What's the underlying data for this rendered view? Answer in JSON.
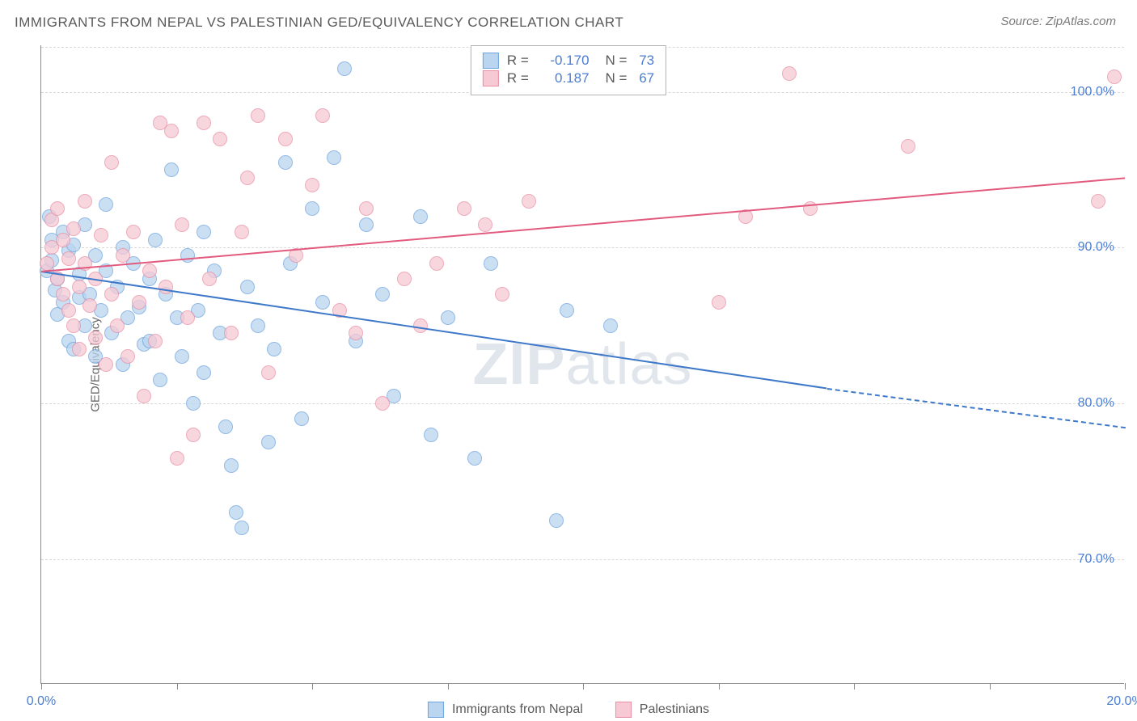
{
  "title": "IMMIGRANTS FROM NEPAL VS PALESTINIAN GED/EQUIVALENCY CORRELATION CHART",
  "source": "Source: ZipAtlas.com",
  "ylabel": "GED/Equivalency",
  "watermark_bold": "ZIP",
  "watermark_rest": "atlas",
  "chart": {
    "type": "scatter-with-trend",
    "xlim": [
      0,
      20
    ],
    "ylim": [
      62,
      103
    ],
    "xticks": [
      0,
      2.5,
      5,
      7.5,
      10,
      12.5,
      15,
      17.5,
      20
    ],
    "xtick_labels_visible": {
      "0": "0.0%",
      "20": "20.0%"
    },
    "yticks": [
      70,
      80,
      90,
      100
    ],
    "ytick_labels": {
      "70": "70.0%",
      "80": "80.0%",
      "90": "90.0%",
      "100": "100.0%"
    },
    "grid_color": "#d8d8d8",
    "axis_color": "#888888",
    "background": "#ffffff",
    "label_color": "#4b7dd1",
    "text_color": "#5a5a5a",
    "title_fontsize": 17,
    "label_fontsize": 15,
    "tick_fontsize": 16,
    "marker_size": 18,
    "series": [
      {
        "name": "Immigrants from Nepal",
        "color_fill": "#bad5f0",
        "color_stroke": "#6ea3dd",
        "trend_color": "#3e78c9",
        "R": "-0.170",
        "N": "73",
        "trend": {
          "x1": 0,
          "y1": 88.5,
          "x2_solid": 14.5,
          "y2_solid": 81.0,
          "x2_dash": 20,
          "y2_dash": 78.5
        },
        "points": [
          [
            0.1,
            88.5
          ],
          [
            0.2,
            89.2
          ],
          [
            0.2,
            90.5
          ],
          [
            0.15,
            92.0
          ],
          [
            0.25,
            87.3
          ],
          [
            0.3,
            85.7
          ],
          [
            0.3,
            88.0
          ],
          [
            0.4,
            86.5
          ],
          [
            0.4,
            91.0
          ],
          [
            0.5,
            89.8
          ],
          [
            0.5,
            84.0
          ],
          [
            0.6,
            83.5
          ],
          [
            0.6,
            90.2
          ],
          [
            0.7,
            86.8
          ],
          [
            0.7,
            88.3
          ],
          [
            0.8,
            85.0
          ],
          [
            0.8,
            91.5
          ],
          [
            0.9,
            87.0
          ],
          [
            1.0,
            89.5
          ],
          [
            1.0,
            83.0
          ],
          [
            1.1,
            86.0
          ],
          [
            1.2,
            88.5
          ],
          [
            1.2,
            92.8
          ],
          [
            1.3,
            84.5
          ],
          [
            1.4,
            87.5
          ],
          [
            1.5,
            90.0
          ],
          [
            1.5,
            82.5
          ],
          [
            1.6,
            85.5
          ],
          [
            1.7,
            89.0
          ],
          [
            1.8,
            86.2
          ],
          [
            1.9,
            83.8
          ],
          [
            2.0,
            88.0
          ],
          [
            2.0,
            84.0
          ],
          [
            2.1,
            90.5
          ],
          [
            2.2,
            81.5
          ],
          [
            2.3,
            87.0
          ],
          [
            2.4,
            95.0
          ],
          [
            2.5,
            85.5
          ],
          [
            2.6,
            83.0
          ],
          [
            2.7,
            89.5
          ],
          [
            2.8,
            80.0
          ],
          [
            2.9,
            86.0
          ],
          [
            3.0,
            91.0
          ],
          [
            3.0,
            82.0
          ],
          [
            3.2,
            88.5
          ],
          [
            3.3,
            84.5
          ],
          [
            3.4,
            78.5
          ],
          [
            3.5,
            76.0
          ],
          [
            3.6,
            73.0
          ],
          [
            3.7,
            72.0
          ],
          [
            3.8,
            87.5
          ],
          [
            4.0,
            85.0
          ],
          [
            4.2,
            77.5
          ],
          [
            4.3,
            83.5
          ],
          [
            4.5,
            95.5
          ],
          [
            4.6,
            89.0
          ],
          [
            4.8,
            79.0
          ],
          [
            5.0,
            92.5
          ],
          [
            5.2,
            86.5
          ],
          [
            5.4,
            95.8
          ],
          [
            5.6,
            101.5
          ],
          [
            5.8,
            84.0
          ],
          [
            6.0,
            91.5
          ],
          [
            6.3,
            87.0
          ],
          [
            6.5,
            80.5
          ],
          [
            7.0,
            92.0
          ],
          [
            7.2,
            78.0
          ],
          [
            7.5,
            85.5
          ],
          [
            8.0,
            76.5
          ],
          [
            8.3,
            89.0
          ],
          [
            9.5,
            72.5
          ],
          [
            9.7,
            86.0
          ],
          [
            10.5,
            85.0
          ]
        ]
      },
      {
        "name": "Palestinians",
        "color_fill": "#f6c9d4",
        "color_stroke": "#e88fa5",
        "trend_color": "#e35a7f",
        "R": "0.187",
        "N": "67",
        "trend": {
          "x1": 0,
          "y1": 88.5,
          "x2_solid": 20,
          "y2_solid": 94.5,
          "x2_dash": 20,
          "y2_dash": 94.5
        },
        "points": [
          [
            0.1,
            89.0
          ],
          [
            0.2,
            90.0
          ],
          [
            0.2,
            91.8
          ],
          [
            0.3,
            88.0
          ],
          [
            0.3,
            92.5
          ],
          [
            0.4,
            87.0
          ],
          [
            0.4,
            90.5
          ],
          [
            0.5,
            86.0
          ],
          [
            0.5,
            89.3
          ],
          [
            0.6,
            85.0
          ],
          [
            0.6,
            91.2
          ],
          [
            0.7,
            87.5
          ],
          [
            0.7,
            83.5
          ],
          [
            0.8,
            89.0
          ],
          [
            0.8,
            93.0
          ],
          [
            0.9,
            86.3
          ],
          [
            1.0,
            88.0
          ],
          [
            1.0,
            84.2
          ],
          [
            1.1,
            90.8
          ],
          [
            1.2,
            82.5
          ],
          [
            1.3,
            87.0
          ],
          [
            1.3,
            95.5
          ],
          [
            1.4,
            85.0
          ],
          [
            1.5,
            89.5
          ],
          [
            1.6,
            83.0
          ],
          [
            1.7,
            91.0
          ],
          [
            1.8,
            86.5
          ],
          [
            1.9,
            80.5
          ],
          [
            2.0,
            88.5
          ],
          [
            2.1,
            84.0
          ],
          [
            2.2,
            98.0
          ],
          [
            2.3,
            87.5
          ],
          [
            2.4,
            97.5
          ],
          [
            2.5,
            76.5
          ],
          [
            2.6,
            91.5
          ],
          [
            2.7,
            85.5
          ],
          [
            2.8,
            78.0
          ],
          [
            3.0,
            98.0
          ],
          [
            3.1,
            88.0
          ],
          [
            3.3,
            97.0
          ],
          [
            3.5,
            84.5
          ],
          [
            3.7,
            91.0
          ],
          [
            3.8,
            94.5
          ],
          [
            4.0,
            98.5
          ],
          [
            4.2,
            82.0
          ],
          [
            4.5,
            97.0
          ],
          [
            4.7,
            89.5
          ],
          [
            5.0,
            94.0
          ],
          [
            5.2,
            98.5
          ],
          [
            5.5,
            86.0
          ],
          [
            5.8,
            84.5
          ],
          [
            6.0,
            92.5
          ],
          [
            6.3,
            80.0
          ],
          [
            6.7,
            88.0
          ],
          [
            7.0,
            85.0
          ],
          [
            7.3,
            89.0
          ],
          [
            7.8,
            92.5
          ],
          [
            8.2,
            91.5
          ],
          [
            8.5,
            87.0
          ],
          [
            9.0,
            93.0
          ],
          [
            12.5,
            86.5
          ],
          [
            13.0,
            92.0
          ],
          [
            13.8,
            101.2
          ],
          [
            14.2,
            92.5
          ],
          [
            16.0,
            96.5
          ],
          [
            19.5,
            93.0
          ],
          [
            19.8,
            101.0
          ]
        ]
      }
    ]
  },
  "legend_top": {
    "r_label": "R = ",
    "n_label": "N = "
  },
  "legend_bottom": [
    {
      "label": "Immigrants from Nepal",
      "fill": "#bad5f0",
      "stroke": "#6ea3dd"
    },
    {
      "label": "Palestinians",
      "fill": "#f6c9d4",
      "stroke": "#e88fa5"
    }
  ]
}
